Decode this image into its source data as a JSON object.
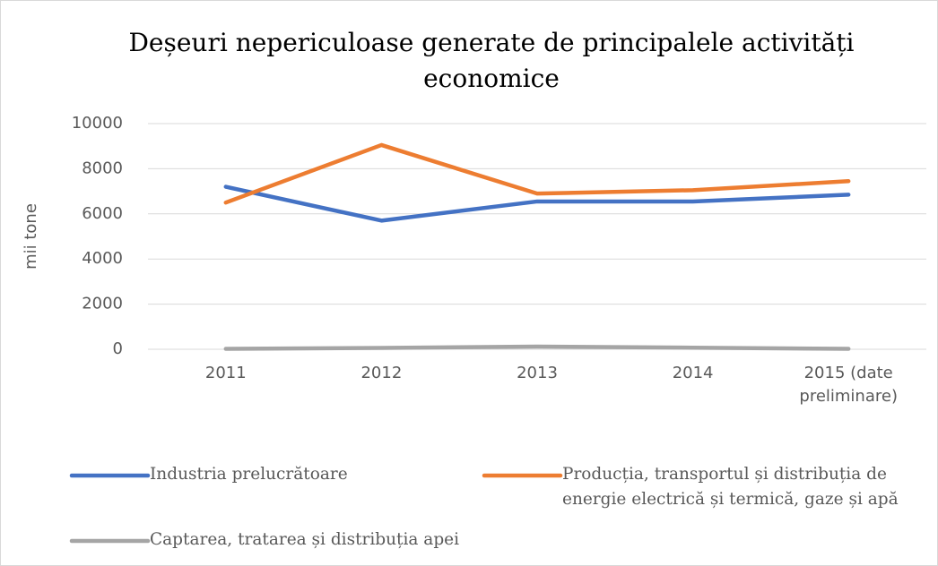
{
  "chart_data": {
    "type": "line",
    "title": "Deșeuri nepericuloase generate de principalele activități economice",
    "y_label": "mii tone",
    "categories": [
      "2011",
      "2012",
      "2013",
      "2014",
      "2015 (date preliminare)"
    ],
    "series": [
      {
        "name": "Industria prelucrătoare",
        "color": "#4472c4",
        "values": [
          7200,
          5700,
          6550,
          6550,
          6850
        ]
      },
      {
        "name": "Producția, transportul și distribuția de energie electrică și termică, gaze și apă",
        "color": "#ed7d31",
        "values": [
          6500,
          9050,
          6900,
          7050,
          7450
        ]
      },
      {
        "name": "Captarea, tratarea și distribuția apei",
        "color": "#a5a5a5",
        "values": [
          20,
          60,
          120,
          70,
          20
        ]
      }
    ],
    "ylim": [
      0,
      10000
    ],
    "yticks": [
      0,
      2000,
      4000,
      6000,
      8000,
      10000
    ],
    "grid": true
  }
}
